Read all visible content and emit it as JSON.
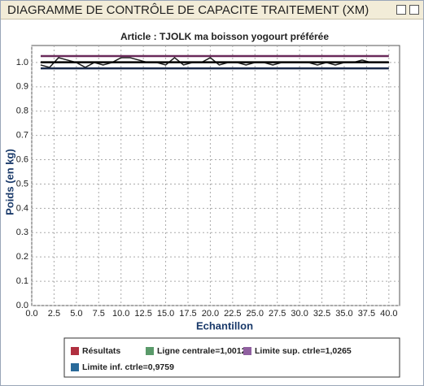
{
  "window_title": "DIAGRAMME DE CONTRÔLE DE CAPACITE TRAITEMENT (XM)",
  "chart_data": {
    "type": "line",
    "title": "Article : TJOLK ma boisson yogourt préférée",
    "x_label": "Echantillon",
    "y_label": "Poids (en kg)",
    "xlim": [
      0,
      41.2
    ],
    "ylim": [
      0,
      1.07
    ],
    "grid": true,
    "xticks": [
      {
        "value": 0,
        "label": "0.0"
      },
      2.5,
      {
        "value": 5,
        "label": "5.0"
      },
      7.5,
      {
        "value": 10,
        "label": "10.0"
      },
      12.5,
      {
        "value": 15,
        "label": "15.0"
      },
      17.5,
      {
        "value": 20,
        "label": "20.0"
      },
      22.5,
      {
        "value": 25,
        "label": "25.0"
      },
      27.5,
      {
        "value": 30,
        "label": "30.0"
      },
      32.5,
      {
        "value": 35,
        "label": "35.0"
      },
      37.5,
      {
        "value": 40,
        "label": "40.0"
      }
    ],
    "yticks": [
      {
        "value": 0,
        "label": "0.0"
      },
      0.1,
      0.2,
      0.3,
      0.4,
      0.5,
      0.6,
      0.7,
      0.8,
      0.9,
      {
        "value": 1,
        "label": "1.0"
      }
    ],
    "series": [
      {
        "name": "Résultats",
        "color": "#b03040",
        "line_color": "#1a1a1a",
        "x": [
          1,
          2,
          3,
          4,
          5,
          6,
          7,
          8,
          9,
          10,
          11,
          12,
          13,
          14,
          15,
          16,
          17,
          18,
          19,
          20,
          21,
          22,
          23,
          24,
          25,
          26,
          27,
          28,
          29,
          30,
          31,
          32,
          33,
          34,
          35,
          36,
          37,
          38,
          39,
          40
        ],
        "values": [
          0.99,
          0.98,
          1.02,
          1.01,
          1.0,
          0.98,
          1.0,
          0.99,
          1.0,
          1.02,
          1.02,
          1.01,
          1.0,
          1.0,
          0.99,
          1.02,
          0.99,
          1.0,
          1.0,
          1.02,
          0.99,
          1.0,
          1.0,
          0.99,
          1.0,
          1.0,
          0.99,
          1.0,
          1.0,
          1.0,
          1.0,
          0.99,
          1.0,
          0.99,
          1.0,
          1.0,
          1.01,
          1.0,
          1.0,
          1.0
        ]
      },
      {
        "name": "Ligne centrale=1,0012",
        "color": "#5a9a6a",
        "line_color": "#000000",
        "x": [
          1,
          40
        ],
        "values": [
          1.0012,
          1.0012
        ]
      },
      {
        "name": "Limite sup. ctrle=1,0265",
        "color": "#9060a0",
        "line_color": "#6a2a5a",
        "x": [
          1,
          40
        ],
        "values": [
          1.0265,
          1.0265
        ]
      },
      {
        "name": "Limite inf. ctrle=0,9759",
        "color": "#2a6a9a",
        "line_color": "#1a2a4a",
        "x": [
          1,
          40
        ],
        "values": [
          0.9759,
          0.9759
        ]
      }
    ]
  }
}
